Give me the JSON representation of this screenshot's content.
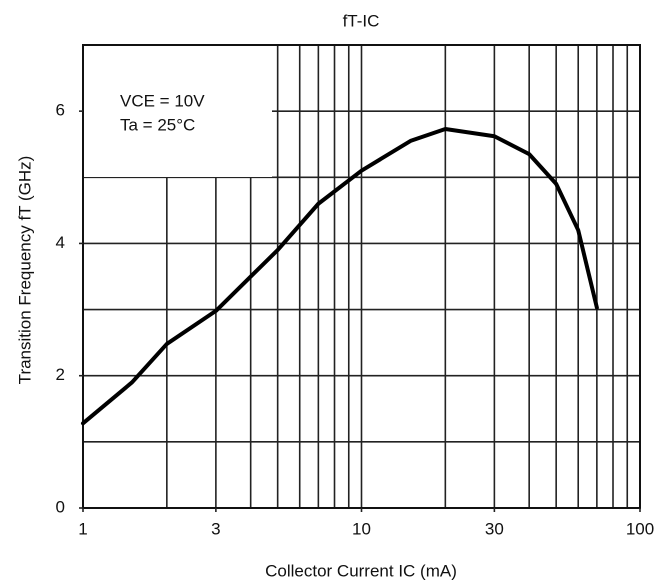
{
  "chart_data": {
    "type": "line",
    "title": "fT-IC",
    "x_label": "Collector Current IC (mA)",
    "y_label": "Transition Frequency fT (GHz)",
    "annotations": [
      "VCE = 10V",
      "Ta = 25°C"
    ],
    "x": [
      1,
      1.5,
      2,
      3,
      5,
      7,
      10,
      15,
      20,
      30,
      40,
      50,
      60,
      70
    ],
    "series": [
      {
        "name": "fT",
        "color": "#000000",
        "values": [
          1.28,
          1.9,
          2.48,
          2.98,
          3.9,
          4.6,
          5.1,
          5.55,
          5.73,
          5.62,
          5.35,
          4.9,
          4.2,
          3.03
        ]
      }
    ],
    "xscale": "log",
    "xlim": [
      1,
      100
    ],
    "xticks": [
      1,
      3,
      10,
      30,
      100
    ],
    "xgrid": [
      2,
      3,
      4,
      5,
      6,
      7,
      8,
      9,
      10,
      20,
      30,
      40,
      50,
      60,
      70,
      80,
      90
    ],
    "ylim": [
      0,
      7
    ],
    "yticks": [
      0,
      2,
      4,
      6
    ],
    "ygrid": [
      1,
      2,
      3,
      4,
      5,
      6
    ],
    "grid": true
  }
}
